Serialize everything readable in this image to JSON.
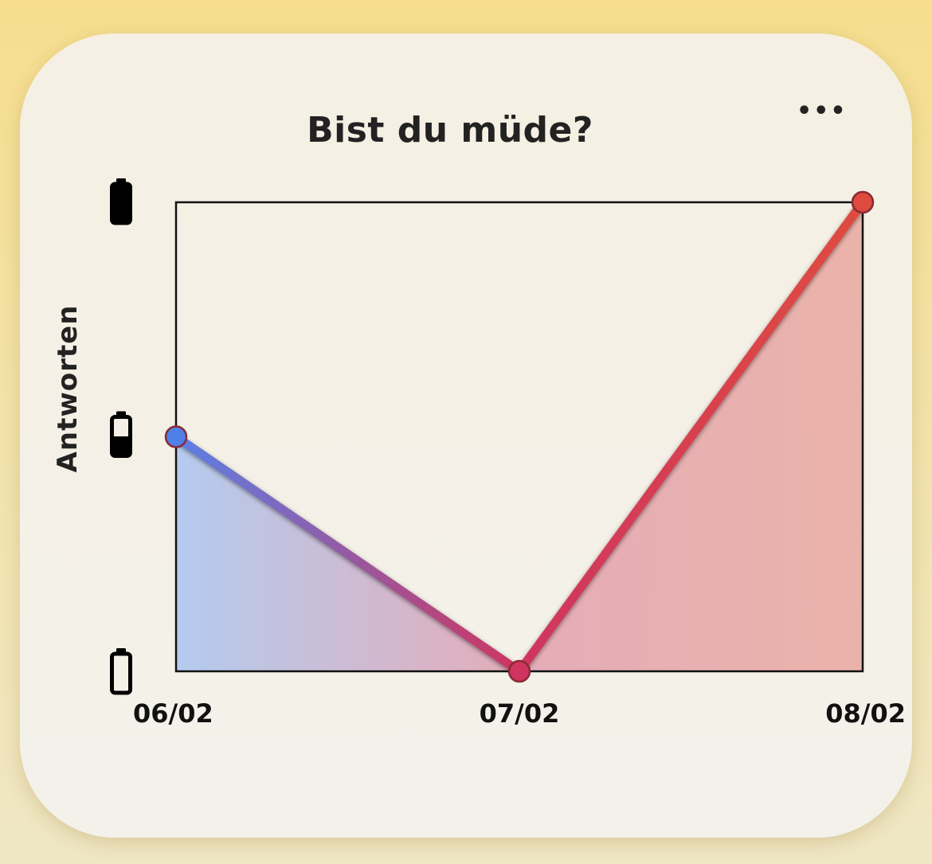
{
  "header": {
    "title": "Bist du müde?",
    "more_label": "•••"
  },
  "chart_data": {
    "type": "area",
    "title": "Bist du müde?",
    "xlabel": "",
    "ylabel": "Antworten",
    "categories": [
      "06/02",
      "07/02",
      "08/02"
    ],
    "values": [
      0.5,
      0.0,
      1.0
    ],
    "ylim": [
      0,
      1
    ],
    "y_ticks": [
      {
        "value": 1.0,
        "icon": "battery-full-icon"
      },
      {
        "value": 0.5,
        "icon": "battery-half-icon"
      },
      {
        "value": 0.0,
        "icon": "battery-empty-icon"
      }
    ],
    "grid": false,
    "point_colors": [
      "#4f80e8",
      "#cf3560",
      "#de4a3e"
    ],
    "line_gradient": [
      "#5b7fe6",
      "#cf3560",
      "#df4b3f"
    ],
    "fill_gradient": [
      "#a9c4f0",
      "#e2a0b0",
      "#e9a89e"
    ]
  }
}
